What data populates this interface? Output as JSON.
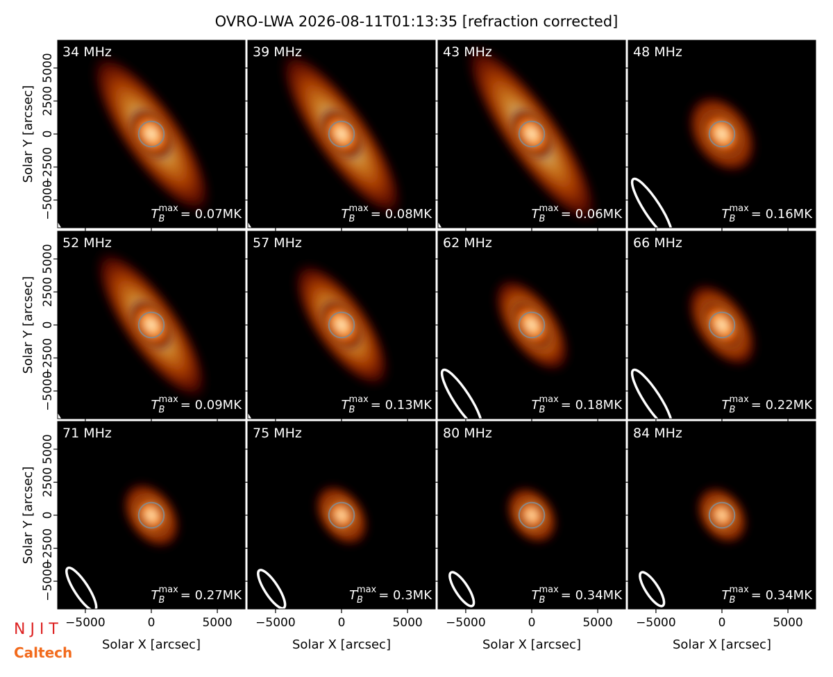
{
  "title": "OVRO-LWA 2026-08-11T01:13:35 [refraction corrected]",
  "tb_symbol": "T",
  "tb_sub": "B",
  "tb_sup": "max",
  "logos": [
    "N J I T",
    "Caltech"
  ],
  "chart_data": [
    {
      "type": "image",
      "title": "34 MHz",
      "annotation": "= 0.07MK",
      "xlabel": "Solar X [arcsec]",
      "ylabel": "Solar Y [arcsec]",
      "xlim": [
        -7100,
        7100
      ],
      "ylim": [
        -7100,
        7100
      ],
      "xticks": [
        {
          "value": -5000,
          "label": "−5000"
        },
        0,
        5000
      ],
      "yticks": [
        {
          "value": -5000,
          "label": "−5000"
        },
        {
          "value": -2500,
          "label": "−2500"
        },
        0,
        2500,
        5000
      ]
    },
    {
      "type": "image",
      "title": "39 MHz",
      "annotation": "= 0.08MK",
      "xlabel": "Solar X [arcsec]",
      "ylabel": "Solar Y [arcsec]",
      "xlim": [
        -7100,
        7100
      ],
      "ylim": [
        -7100,
        7100
      ],
      "xticks": [
        {
          "value": -5000,
          "label": "−5000"
        },
        0,
        5000
      ],
      "yticks": [
        {
          "value": -5000,
          "label": "−5000"
        },
        {
          "value": -2500,
          "label": "−2500"
        },
        0,
        2500,
        5000
      ]
    },
    {
      "type": "image",
      "title": "43 MHz",
      "annotation": "= 0.06MK",
      "xlabel": "Solar X [arcsec]",
      "ylabel": "Solar Y [arcsec]",
      "xlim": [
        -7100,
        7100
      ],
      "ylim": [
        -7100,
        7100
      ],
      "xticks": [
        {
          "value": -5000,
          "label": "−5000"
        },
        0,
        5000
      ],
      "yticks": [
        {
          "value": -5000,
          "label": "−5000"
        },
        {
          "value": -2500,
          "label": "−2500"
        },
        0,
        2500,
        5000
      ]
    },
    {
      "type": "image",
      "title": "48 MHz",
      "annotation": "= 0.16MK",
      "xlabel": "Solar X [arcsec]",
      "ylabel": "Solar Y [arcsec]",
      "xlim": [
        -7100,
        7100
      ],
      "ylim": [
        -7100,
        7100
      ],
      "xticks": [
        {
          "value": -5000,
          "label": "−5000"
        },
        0,
        5000
      ],
      "yticks": [
        {
          "value": -5000,
          "label": "−5000"
        },
        {
          "value": -2500,
          "label": "−2500"
        },
        0,
        2500,
        5000
      ]
    },
    {
      "type": "image",
      "title": "52 MHz",
      "annotation": "= 0.09MK",
      "xlabel": "Solar X [arcsec]",
      "ylabel": "Solar Y [arcsec]",
      "xlim": [
        -7100,
        7100
      ],
      "ylim": [
        -7100,
        7100
      ],
      "xticks": [
        {
          "value": -5000,
          "label": "−5000"
        },
        0,
        5000
      ],
      "yticks": [
        {
          "value": -5000,
          "label": "−5000"
        },
        {
          "value": -2500,
          "label": "−2500"
        },
        0,
        2500,
        5000
      ]
    },
    {
      "type": "image",
      "title": "57 MHz",
      "annotation": "= 0.13MK",
      "xlabel": "Solar X [arcsec]",
      "ylabel": "Solar Y [arcsec]",
      "xlim": [
        -7100,
        7100
      ],
      "ylim": [
        -7100,
        7100
      ],
      "xticks": [
        {
          "value": -5000,
          "label": "−5000"
        },
        0,
        5000
      ],
      "yticks": [
        {
          "value": -5000,
          "label": "−5000"
        },
        {
          "value": -2500,
          "label": "−2500"
        },
        0,
        2500,
        5000
      ]
    },
    {
      "type": "image",
      "title": "62 MHz",
      "annotation": "= 0.18MK",
      "xlabel": "Solar X [arcsec]",
      "ylabel": "Solar Y [arcsec]",
      "xlim": [
        -7100,
        7100
      ],
      "ylim": [
        -7100,
        7100
      ],
      "xticks": [
        {
          "value": -5000,
          "label": "−5000"
        },
        0,
        5000
      ],
      "yticks": [
        {
          "value": -5000,
          "label": "−5000"
        },
        {
          "value": -2500,
          "label": "−2500"
        },
        0,
        2500,
        5000
      ]
    },
    {
      "type": "image",
      "title": "66 MHz",
      "annotation": "= 0.22MK",
      "xlabel": "Solar X [arcsec]",
      "ylabel": "Solar Y [arcsec]",
      "xlim": [
        -7100,
        7100
      ],
      "ylim": [
        -7100,
        7100
      ],
      "xticks": [
        {
          "value": -5000,
          "label": "−5000"
        },
        0,
        5000
      ],
      "yticks": [
        {
          "value": -5000,
          "label": "−5000"
        },
        {
          "value": -2500,
          "label": "−2500"
        },
        0,
        2500,
        5000
      ]
    },
    {
      "type": "image",
      "title": "71 MHz",
      "annotation": "= 0.27MK",
      "xlabel": "Solar X [arcsec]",
      "ylabel": "Solar Y [arcsec]",
      "xlim": [
        -7100,
        7100
      ],
      "ylim": [
        -7100,
        7100
      ],
      "xticks": [
        {
          "value": -5000,
          "label": "−5000"
        },
        0,
        5000
      ],
      "yticks": [
        {
          "value": -5000,
          "label": "−5000"
        },
        {
          "value": -2500,
          "label": "−2500"
        },
        0,
        2500,
        5000
      ]
    },
    {
      "type": "image",
      "title": "75 MHz",
      "annotation": "= 0.3MK",
      "xlabel": "Solar X [arcsec]",
      "ylabel": "Solar Y [arcsec]",
      "xlim": [
        -7100,
        7100
      ],
      "ylim": [
        -7100,
        7100
      ],
      "xticks": [
        {
          "value": -5000,
          "label": "−5000"
        },
        0,
        5000
      ],
      "yticks": [
        {
          "value": -5000,
          "label": "−5000"
        },
        {
          "value": -2500,
          "label": "−2500"
        },
        0,
        2500,
        5000
      ]
    },
    {
      "type": "image",
      "title": "80 MHz",
      "annotation": "= 0.34MK",
      "xlabel": "Solar X [arcsec]",
      "ylabel": "Solar Y [arcsec]",
      "xlim": [
        -7100,
        7100
      ],
      "ylim": [
        -7100,
        7100
      ],
      "xticks": [
        {
          "value": -5000,
          "label": "−5000"
        },
        0,
        5000
      ],
      "yticks": [
        {
          "value": -5000,
          "label": "−5000"
        },
        {
          "value": -2500,
          "label": "−2500"
        },
        0,
        2500,
        5000
      ]
    },
    {
      "type": "image",
      "title": "84 MHz",
      "annotation": "= 0.34MK",
      "xlabel": "Solar X [arcsec]",
      "ylabel": "Solar Y [arcsec]",
      "xlim": [
        -7100,
        7100
      ],
      "ylim": [
        -7100,
        7100
      ],
      "xticks": [
        {
          "value": -5000,
          "label": "−5000"
        },
        0,
        5000
      ],
      "yticks": [
        {
          "value": -5000,
          "label": "−5000"
        },
        {
          "value": -2500,
          "label": "−2500"
        },
        0,
        2500,
        5000
      ]
    }
  ]
}
